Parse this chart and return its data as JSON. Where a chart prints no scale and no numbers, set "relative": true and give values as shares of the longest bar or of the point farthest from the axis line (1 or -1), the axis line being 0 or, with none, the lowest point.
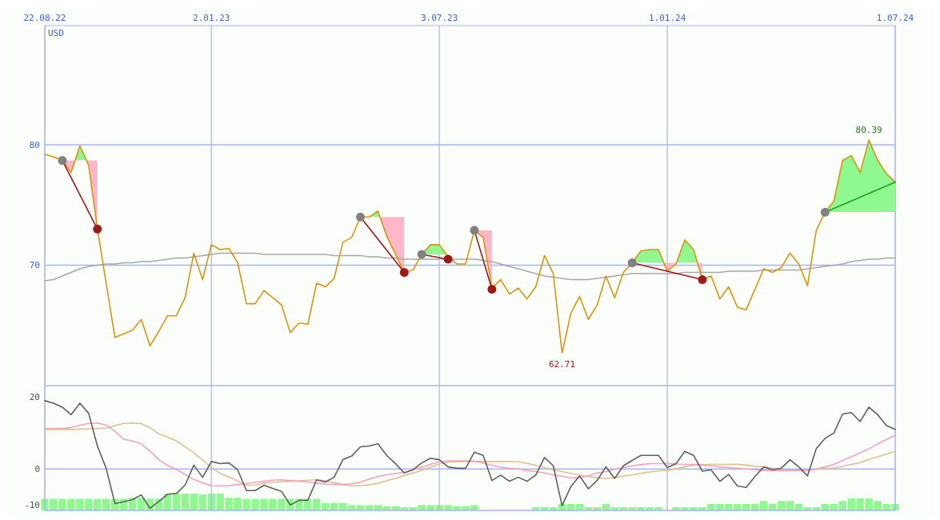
{
  "chart_data": [
    {
      "type": "line",
      "ylabel": "USD",
      "x": [
        "2022-08-22",
        "2022-08-29",
        "2022-09-05",
        "2022-09-12",
        "2022-09-19",
        "2022-09-26",
        "2022-10-03",
        "2022-10-10",
        "2022-10-17",
        "2022-10-24",
        "2022-10-31",
        "2022-11-07",
        "2022-11-14",
        "2022-11-21",
        "2022-11-28",
        "2022-12-05",
        "2022-12-12",
        "2022-12-19",
        "2022-12-26",
        "2023-01-02",
        "2023-01-09",
        "2023-01-16",
        "2023-01-23",
        "2023-01-30",
        "2023-02-06",
        "2023-02-13",
        "2023-02-20",
        "2023-02-27",
        "2023-03-06",
        "2023-03-13",
        "2023-03-20",
        "2023-03-27",
        "2023-04-03",
        "2023-04-10",
        "2023-04-17",
        "2023-04-24",
        "2023-05-01",
        "2023-05-08",
        "2023-05-15",
        "2023-05-22",
        "2023-05-29",
        "2023-06-05",
        "2023-06-12",
        "2023-06-19",
        "2023-06-26",
        "2023-07-03",
        "2023-07-10",
        "2023-07-17",
        "2023-07-24",
        "2023-07-31",
        "2023-08-07",
        "2023-08-14",
        "2023-08-21",
        "2023-08-28",
        "2023-09-04",
        "2023-09-11",
        "2023-09-18",
        "2023-09-25",
        "2023-10-02",
        "2023-10-09",
        "2023-10-16",
        "2023-10-23",
        "2023-10-30",
        "2023-11-06",
        "2023-11-13",
        "2023-11-20",
        "2023-11-27",
        "2023-12-04",
        "2023-12-11",
        "2023-12-18",
        "2023-12-25",
        "2024-01-01",
        "2024-01-08",
        "2024-01-15",
        "2024-01-22",
        "2024-01-29",
        "2024-02-05",
        "2024-02-12",
        "2024-02-19",
        "2024-02-26",
        "2024-03-04",
        "2024-03-11",
        "2024-03-18",
        "2024-03-25",
        "2024-04-01",
        "2024-04-08",
        "2024-04-15",
        "2024-04-22",
        "2024-04-29",
        "2024-05-06",
        "2024-05-13",
        "2024-05-20",
        "2024-05-27",
        "2024-06-03",
        "2024-06-10",
        "2024-06-17",
        "2024-06-24",
        "2024-07-01"
      ],
      "xlim": [
        "2022-08-22",
        "2024-07-01"
      ],
      "xticks": [
        {
          "value": "2022-08-22",
          "label": "22.08.22"
        },
        {
          "value": "2023-01-02",
          "label": "2.01.23"
        },
        {
          "value": "2023-07-03",
          "label": "3.07.23"
        },
        {
          "value": "2024-01-01",
          "label": "1.01.24"
        },
        {
          "value": "2024-07-01",
          "label": "1.07.24"
        }
      ],
      "ylim": [
        60,
        89.9
      ],
      "yticks": [
        70,
        80
      ],
      "grid": true,
      "annotations": [
        {
          "text": "80.39",
          "x": "2024-06-10",
          "y": 80.39
        },
        {
          "text": "62.71",
          "x": "2023-10-09",
          "y": 62.71
        }
      ],
      "series": [
        {
          "color": "#a8a8a8",
          "values": [
            68.7,
            68.8,
            69.1,
            69.4,
            69.7,
            69.9,
            70.0,
            70.1,
            70.1,
            70.2,
            70.2,
            70.3,
            70.3,
            70.4,
            70.5,
            70.6,
            70.6,
            70.7,
            70.8,
            70.9,
            71.0,
            71.0,
            71.0,
            71.0,
            71.0,
            70.9,
            70.9,
            70.9,
            70.9,
            70.9,
            70.9,
            70.9,
            70.9,
            70.8,
            70.8,
            70.8,
            70.8,
            70.7,
            70.7,
            70.6,
            70.6,
            70.5,
            70.5,
            70.5,
            70.5,
            70.5,
            70.5,
            70.5,
            70.5,
            70.5,
            70.4,
            70.3,
            70.1,
            69.9,
            69.7,
            69.5,
            69.3,
            69.1,
            69.0,
            68.9,
            68.8,
            68.8,
            68.8,
            68.9,
            69.0,
            69.1,
            69.2,
            69.3,
            69.3,
            69.3,
            69.3,
            69.3,
            69.3,
            69.4,
            69.4,
            69.4,
            69.4,
            69.4,
            69.5,
            69.5,
            69.5,
            69.5,
            69.6,
            69.6,
            69.6,
            69.6,
            69.6,
            69.7,
            69.8,
            69.9,
            70.0,
            70.1,
            70.3,
            70.4,
            70.5,
            70.5,
            70.6,
            70.6
          ]
        },
        {
          "color": "#d8960c",
          "values": [
            79.2,
            79.0,
            78.7,
            77.7,
            79.9,
            78.3,
            73.0,
            68.5,
            64.0,
            64.3,
            64.6,
            65.5,
            63.3,
            64.5,
            65.8,
            65.8,
            67.3,
            71.0,
            68.8,
            71.7,
            71.3,
            71.4,
            70.2,
            66.8,
            66.8,
            67.9,
            67.3,
            66.7,
            64.4,
            65.2,
            65.1,
            68.5,
            68.2,
            68.9,
            71.9,
            72.3,
            74.0,
            74.0,
            74.5,
            72.4,
            70.9,
            69.4,
            69.6,
            70.9,
            71.7,
            71.7,
            70.7,
            70.1,
            70.1,
            72.9,
            72.3,
            68.1,
            68.8,
            67.6,
            68.1,
            67.2,
            68.2,
            70.8,
            69.3,
            62.71,
            66.0,
            67.4,
            65.5,
            66.7,
            69.1,
            67.3,
            69.4,
            70.2,
            71.2,
            71.3,
            71.3,
            69.5,
            70.1,
            72.1,
            71.3,
            68.8,
            69.1,
            67.2,
            68.2,
            66.5,
            66.3,
            68.0,
            69.7,
            69.4,
            69.8,
            71.0,
            70.1,
            68.3,
            72.9,
            74.4,
            75.3,
            78.7,
            79.1,
            77.7,
            80.39,
            78.7,
            77.6,
            76.9
          ]
        },
        {
          "x": [
            "2022-09-05",
            "2022-10-03"
          ],
          "values": [
            78.7,
            73.0
          ],
          "color": "#a01818"
        },
        {
          "x": [
            "2023-05-01",
            "2023-06-05"
          ],
          "values": [
            74.0,
            69.4
          ],
          "color": "#a01818"
        },
        {
          "x": [
            "2023-06-19",
            "2023-07-10"
          ],
          "values": [
            70.9,
            70.5
          ],
          "color": "#a01818"
        },
        {
          "x": [
            "2023-07-31",
            "2023-08-14"
          ],
          "values": [
            72.9,
            68.0
          ],
          "color": "#a01818"
        },
        {
          "x": [
            "2023-12-04",
            "2024-01-29"
          ],
          "values": [
            70.2,
            68.8
          ],
          "color": "#a01818"
        },
        {
          "x": [
            "2024-05-06",
            "2024-07-01"
          ],
          "values": [
            74.4,
            76.9
          ],
          "color": "#20a020"
        },
        {
          "type": "scatter",
          "marker": "circle",
          "color": "#808080",
          "x": [
            "2022-09-05",
            "2023-05-01",
            "2023-06-19",
            "2023-07-31",
            "2023-12-04",
            "2024-05-06"
          ],
          "values": [
            78.7,
            74.0,
            70.9,
            72.9,
            70.2,
            74.4
          ]
        },
        {
          "type": "scatter",
          "marker": "circle",
          "color": "#a01818",
          "x": [
            "2022-10-03",
            "2023-06-05",
            "2023-07-10",
            "2023-08-14",
            "2024-01-29"
          ],
          "values": [
            73.0,
            69.4,
            70.5,
            68.0,
            68.8
          ]
        }
      ]
    },
    {
      "type": "line",
      "tick_labels": "y",
      "grid": "x",
      "x": [
        "2022-08-22",
        "2022-08-29",
        "2022-09-05",
        "2022-09-12",
        "2022-09-19",
        "2022-09-26",
        "2022-10-03",
        "2022-10-10",
        "2022-10-17",
        "2022-10-24",
        "2022-10-31",
        "2022-11-07",
        "2022-11-14",
        "2022-11-21",
        "2022-11-28",
        "2022-12-05",
        "2022-12-12",
        "2022-12-19",
        "2022-12-26",
        "2023-01-02",
        "2023-01-09",
        "2023-01-16",
        "2023-01-23",
        "2023-01-30",
        "2023-02-06",
        "2023-02-13",
        "2023-02-20",
        "2023-02-27",
        "2023-03-06",
        "2023-03-13",
        "2023-03-20",
        "2023-03-27",
        "2023-04-03",
        "2023-04-10",
        "2023-04-17",
        "2023-04-24",
        "2023-05-01",
        "2023-05-08",
        "2023-05-15",
        "2023-05-22",
        "2023-05-29",
        "2023-06-05",
        "2023-06-12",
        "2023-06-19",
        "2023-06-26",
        "2023-07-03",
        "2023-07-10",
        "2023-07-17",
        "2023-07-24",
        "2023-07-31",
        "2023-08-07",
        "2023-08-14",
        "2023-08-21",
        "2023-08-28",
        "2023-09-04",
        "2023-09-11",
        "2023-09-18",
        "2023-09-25",
        "2023-10-02",
        "2023-10-09",
        "2023-10-16",
        "2023-10-23",
        "2023-10-30",
        "2023-11-06",
        "2023-11-13",
        "2023-11-20",
        "2023-11-27",
        "2023-12-04",
        "2023-12-11",
        "2023-12-18",
        "2023-12-25",
        "2024-01-01",
        "2024-01-08",
        "2024-01-15",
        "2024-01-22",
        "2024-01-29",
        "2024-02-05",
        "2024-02-12",
        "2024-02-19",
        "2024-02-26",
        "2024-03-04",
        "2024-03-11",
        "2024-03-18",
        "2024-03-25",
        "2024-04-01",
        "2024-04-08",
        "2024-04-15",
        "2024-04-22",
        "2024-04-29",
        "2024-05-06",
        "2024-05-13",
        "2024-05-20",
        "2024-05-27",
        "2024-06-03",
        "2024-06-10",
        "2024-06-17",
        "2024-06-24",
        "2024-07-01"
      ],
      "xlim": [
        "2022-08-22",
        "2024-07-01"
      ],
      "xticks": [
        {
          "value": "2022-08-22",
          "label": null
        },
        {
          "value": "2023-01-02",
          "label": null
        },
        {
          "value": "2023-07-03",
          "label": null
        },
        {
          "value": "2024-01-01",
          "label": null
        },
        {
          "value": "2024-07-01",
          "label": null
        }
      ],
      "ylim": [
        -11.5,
        23.2
      ],
      "yticks": [
        -10,
        0,
        20
      ],
      "ref_lines": [
        {
          "axis": "y",
          "value": 0
        }
      ],
      "series": [
        {
          "color": "#e0c090",
          "values": [
            10.9,
            10.9,
            11.0,
            11.0,
            11.1,
            11.2,
            11.3,
            11.4,
            12.1,
            12.7,
            12.8,
            12.6,
            11.5,
            9.8,
            8.9,
            7.8,
            6.2,
            4.5,
            2.5,
            0.4,
            -1.2,
            -2.2,
            -3.3,
            -4.5,
            -4.5,
            -3.9,
            -3.7,
            -3.5,
            -3.4,
            -3.3,
            -3.1,
            -3.0,
            -3.3,
            -3.8,
            -4.3,
            -4.7,
            -4.6,
            -4.4,
            -4.0,
            -3.2,
            -2.6,
            -1.8,
            -1.1,
            -0.4,
            0.5,
            1.4,
            1.9,
            2.0,
            2.1,
            2.1,
            2.1,
            2.1,
            2.1,
            2.1,
            2.0,
            1.6,
            1.0,
            0.4,
            -0.2,
            -0.7,
            -1.2,
            -1.7,
            -2.1,
            -2.4,
            -2.6,
            -2.4,
            -2.0,
            -1.6,
            -1.2,
            -0.8,
            -0.5,
            -0.4,
            0.1,
            0.6,
            1.1,
            1.2,
            1.3,
            1.3,
            1.3,
            1.3,
            1.1,
            0.8,
            0.6,
            0.2,
            -0.2,
            -0.4,
            -0.4,
            -0.4,
            -0.1,
            0.2,
            0.3,
            0.8,
            1.3,
            1.8,
            2.7,
            3.4,
            4.2,
            4.9
          ]
        },
        {
          "color": "#f4a0c0",
          "values": [
            11.3,
            11.3,
            11.3,
            11.5,
            12.2,
            12.7,
            12.8,
            12.2,
            10.5,
            8.3,
            7.8,
            7.0,
            5.0,
            2.6,
            1.0,
            -0.1,
            -1.5,
            -2.9,
            -3.8,
            -4.6,
            -4.7,
            -4.6,
            -4.3,
            -4.0,
            -3.7,
            -3.4,
            -3.1,
            -3.0,
            -3.2,
            -3.4,
            -3.6,
            -3.9,
            -4.2,
            -4.3,
            -4.3,
            -4.1,
            -3.6,
            -2.8,
            -2.1,
            -1.6,
            -1.2,
            -0.9,
            -0.2,
            0.5,
            1.3,
            2.0,
            2.3,
            2.3,
            2.3,
            2.2,
            1.7,
            1.0,
            0.5,
            0.2,
            0.0,
            -0.4,
            -0.7,
            -1.1,
            -1.6,
            -2.0,
            -2.5,
            -2.4,
            -1.9,
            -1.1,
            -0.7,
            -0.1,
            0.4,
            0.9,
            1.2,
            1.5,
            1.5,
            1.5,
            1.4,
            1.3,
            1.3,
            1.1,
            0.9,
            0.6,
            0.4,
            0.2,
            0.0,
            -0.2,
            -0.4,
            -0.4,
            -0.4,
            -0.4,
            -0.4,
            -0.4,
            0.0,
            0.6,
            1.3,
            2.4,
            3.4,
            4.5,
            5.6,
            7.0,
            8.2,
            9.4
          ]
        },
        {
          "color": "#606060",
          "values": [
            19.0,
            18.3,
            17.2,
            15.1,
            18.3,
            15.5,
            6.4,
            0.2,
            -9.6,
            -9.1,
            -8.5,
            -7.2,
            -10.9,
            -9.0,
            -7.0,
            -6.8,
            -4.5,
            1.1,
            -2.3,
            2.1,
            1.5,
            1.7,
            -0.2,
            -6.0,
            -6.0,
            -4.5,
            -5.4,
            -6.2,
            -10.0,
            -8.7,
            -8.7,
            -3.0,
            -3.6,
            -2.3,
            2.6,
            3.6,
            6.2,
            6.4,
            7.0,
            3.8,
            1.5,
            -1.1,
            -0.2,
            1.7,
            3.0,
            2.6,
            0.6,
            0.2,
            0.2,
            4.7,
            3.8,
            -3.2,
            -1.7,
            -3.4,
            -2.3,
            -3.4,
            -1.7,
            3.2,
            0.9,
            -10.2,
            -4.9,
            -1.9,
            -5.5,
            -3.2,
            0.6,
            -2.6,
            0.9,
            2.4,
            3.8,
            3.8,
            3.8,
            0.4,
            1.5,
            4.9,
            3.8,
            -0.6,
            -0.2,
            -3.4,
            -1.5,
            -4.7,
            -5.1,
            -2.1,
            0.6,
            -0.2,
            0.2,
            2.6,
            0.6,
            -1.9,
            5.7,
            8.5,
            10.0,
            15.3,
            15.7,
            13.2,
            17.2,
            15.1,
            12.1,
            11.0
          ]
        }
      ]
    },
    {
      "type": "bar",
      "relative": true,
      "tick_labels": false,
      "color": "#90f890",
      "x": [
        "2022-08-22",
        "2022-08-29",
        "2022-09-05",
        "2022-09-12",
        "2022-09-19",
        "2022-09-26",
        "2022-10-03",
        "2022-10-10",
        "2022-10-17",
        "2022-10-24",
        "2022-10-31",
        "2022-11-07",
        "2022-11-14",
        "2022-11-21",
        "2022-11-28",
        "2022-12-05",
        "2022-12-12",
        "2022-12-19",
        "2022-12-26",
        "2023-01-02",
        "2023-01-09",
        "2023-01-16",
        "2023-01-23",
        "2023-01-30",
        "2023-02-06",
        "2023-02-13",
        "2023-02-20",
        "2023-02-27",
        "2023-03-06",
        "2023-03-13",
        "2023-03-20",
        "2023-03-27",
        "2023-04-03",
        "2023-04-10",
        "2023-04-17",
        "2023-04-24",
        "2023-05-01",
        "2023-05-08",
        "2023-05-15",
        "2023-05-22",
        "2023-05-29",
        "2023-06-05",
        "2023-06-12",
        "2023-06-19",
        "2023-06-26",
        "2023-07-03",
        "2023-07-10",
        "2023-07-17",
        "2023-07-24",
        "2023-07-31",
        "2023-08-07",
        "2023-08-14",
        "2023-08-21",
        "2023-08-28",
        "2023-09-04",
        "2023-09-11",
        "2023-09-18",
        "2023-09-25",
        "2023-10-02",
        "2023-10-09",
        "2023-10-16",
        "2023-10-23",
        "2023-10-30",
        "2023-11-06",
        "2023-11-13",
        "2023-11-20",
        "2023-11-27",
        "2023-12-04",
        "2023-12-11",
        "2023-12-18",
        "2023-12-25",
        "2024-01-01",
        "2024-01-08",
        "2024-01-15",
        "2024-01-22",
        "2024-01-29",
        "2024-02-05",
        "2024-02-12",
        "2024-02-19",
        "2024-02-26",
        "2024-03-04",
        "2024-03-11",
        "2024-03-18",
        "2024-03-25",
        "2024-04-01",
        "2024-04-08",
        "2024-04-15",
        "2024-04-22",
        "2024-04-29",
        "2024-05-06",
        "2024-05-13",
        "2024-05-20",
        "2024-05-27",
        "2024-06-03",
        "2024-06-10",
        "2024-06-17",
        "2024-06-24",
        "2024-07-01"
      ],
      "xlim": [
        "2022-08-22",
        "2024-07-01"
      ],
      "values": [
        0.69,
        0.69,
        0.69,
        0.69,
        0.69,
        0.69,
        0.69,
        0.69,
        0.69,
        0.69,
        0.75,
        0.75,
        0.69,
        0.69,
        1,
        1,
        1,
        1,
        0.94,
        1,
        1,
        0.75,
        0.75,
        0.69,
        0.69,
        0.69,
        0.69,
        0.69,
        0.69,
        0.69,
        0.69,
        0.69,
        0.44,
        0.44,
        0.44,
        0.31,
        0.31,
        0.31,
        0.31,
        0.25,
        0.25,
        0.19,
        0.19,
        0.31,
        0.31,
        0.31,
        0.31,
        0.25,
        0.25,
        0.31,
        0,
        0,
        0,
        0,
        0,
        0,
        0.19,
        0.19,
        0.19,
        0.38,
        0.38,
        0.38,
        0.19,
        0.19,
        0.38,
        0.19,
        0.19,
        0.19,
        0.19,
        0.19,
        0.19,
        0,
        0.19,
        0.19,
        0.19,
        0.19,
        0.38,
        0.38,
        0.38,
        0.38,
        0.38,
        0.38,
        0.56,
        0.38,
        0.56,
        0.56,
        0.38,
        0.19,
        0.19,
        0.38,
        0.38,
        0.56,
        0.72,
        0.72,
        0.72,
        0.56,
        0.38,
        0.38
      ]
    }
  ]
}
